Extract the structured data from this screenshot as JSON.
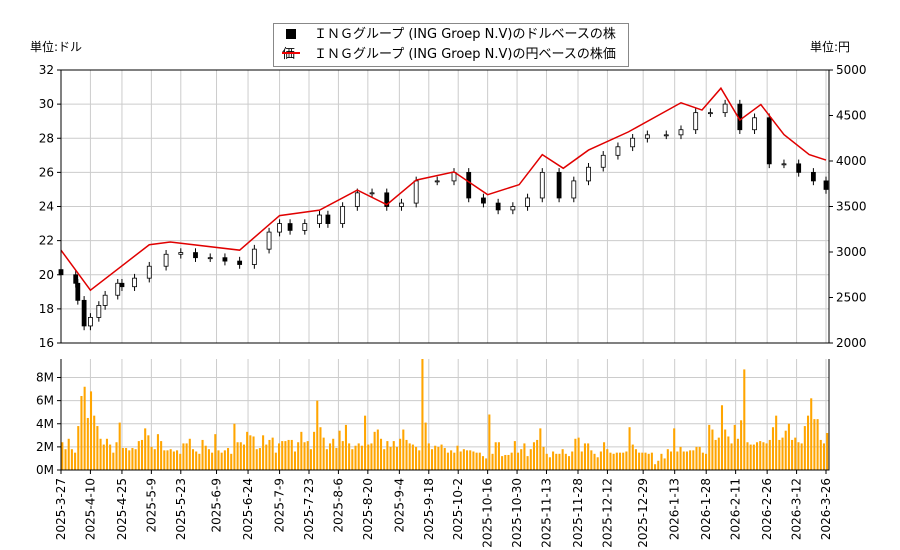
{
  "legend": {
    "usd": "ＩＮＧグループ (ING Groep N.V)のドルベースの株価",
    "jpy": "ＩＮＧグループ (ING Groep N.V)の円ベースの株価"
  },
  "units": {
    "left": "単位:ドル",
    "right": "単位:円"
  },
  "colors": {
    "usd": "#000000",
    "jpy": "#e00000",
    "volume": "#ffa500",
    "grid": "#cccccc"
  },
  "chart_data": [
    {
      "type": "candlestick+line",
      "ylim_left": [
        16,
        32
      ],
      "ylim_right": [
        2000,
        5000
      ],
      "yticks_left": [
        "16",
        "18",
        "20",
        "22",
        "24",
        "26",
        "28",
        "30",
        "32"
      ],
      "yticks_right": [
        "2000",
        "2500",
        "3000",
        "3500",
        "4000",
        "4500",
        "5000"
      ],
      "grid": true,
      "legend_position": "top-center",
      "usd_close": [
        [
          "2025-03-27",
          20.0
        ],
        [
          "2025-04-03",
          19.5
        ],
        [
          "2025-04-04",
          18.5
        ],
        [
          "2025-04-07",
          17.0
        ],
        [
          "2025-04-10",
          17.5
        ],
        [
          "2025-04-14",
          18.2
        ],
        [
          "2025-04-17",
          18.8
        ],
        [
          "2025-04-23",
          19.5
        ],
        [
          "2025-04-25",
          19.3
        ],
        [
          "2025-05-01",
          19.8
        ],
        [
          "2025-05-08",
          20.5
        ],
        [
          "2025-05-16",
          21.2
        ],
        [
          "2025-05-23",
          21.3
        ],
        [
          "2025-05-30",
          21.0
        ],
        [
          "2025-06-06",
          21.0
        ],
        [
          "2025-06-13",
          20.8
        ],
        [
          "2025-06-20",
          20.6
        ],
        [
          "2025-06-27",
          21.5
        ],
        [
          "2025-07-04",
          22.5
        ],
        [
          "2025-07-09",
          23.0
        ],
        [
          "2025-07-14",
          22.6
        ],
        [
          "2025-07-21",
          23.0
        ],
        [
          "2025-07-28",
          23.5
        ],
        [
          "2025-08-01",
          23.0
        ],
        [
          "2025-08-08",
          24.0
        ],
        [
          "2025-08-15",
          24.8
        ],
        [
          "2025-08-22",
          24.8
        ],
        [
          "2025-08-29",
          24.0
        ],
        [
          "2025-09-05",
          24.2
        ],
        [
          "2025-09-12",
          25.5
        ],
        [
          "2025-09-22",
          25.5
        ],
        [
          "2025-09-30",
          26.0
        ],
        [
          "2025-10-07",
          24.5
        ],
        [
          "2025-10-14",
          24.2
        ],
        [
          "2025-10-21",
          23.8
        ],
        [
          "2025-10-28",
          24.0
        ],
        [
          "2025-11-04",
          24.5
        ],
        [
          "2025-11-11",
          26.0
        ],
        [
          "2025-11-19",
          24.5
        ],
        [
          "2025-11-26",
          25.5
        ],
        [
          "2025-12-03",
          26.3
        ],
        [
          "2025-12-10",
          27.0
        ],
        [
          "2025-12-17",
          27.5
        ],
        [
          "2025-12-24",
          28.0
        ],
        [
          "2025-12-31",
          28.2
        ],
        [
          "2026-01-09",
          28.2
        ],
        [
          "2026-01-16",
          28.5
        ],
        [
          "2026-01-23",
          29.5
        ],
        [
          "2026-01-30",
          29.5
        ],
        [
          "2026-02-06",
          30.0
        ],
        [
          "2026-02-13",
          28.5
        ],
        [
          "2026-02-20",
          29.2
        ],
        [
          "2026-02-27",
          26.5
        ],
        [
          "2026-03-06",
          26.5
        ],
        [
          "2026-03-13",
          26.0
        ],
        [
          "2026-03-20",
          25.5
        ],
        [
          "2026-03-26",
          25.0
        ]
      ],
      "jpy_close": [
        [
          "2025-03-27",
          3020
        ],
        [
          "2025-04-10",
          2580
        ],
        [
          "2025-05-08",
          3080
        ],
        [
          "2025-05-18",
          3110
        ],
        [
          "2025-06-20",
          3020
        ],
        [
          "2025-07-09",
          3400
        ],
        [
          "2025-07-28",
          3460
        ],
        [
          "2025-08-15",
          3680
        ],
        [
          "2025-08-29",
          3520
        ],
        [
          "2025-09-12",
          3790
        ],
        [
          "2025-09-30",
          3880
        ],
        [
          "2025-10-16",
          3630
        ],
        [
          "2025-10-31",
          3740
        ],
        [
          "2025-11-11",
          4070
        ],
        [
          "2025-11-21",
          3920
        ],
        [
          "2025-12-03",
          4120
        ],
        [
          "2025-12-22",
          4320
        ],
        [
          "2026-01-16",
          4640
        ],
        [
          "2026-01-26",
          4560
        ],
        [
          "2026-02-04",
          4800
        ],
        [
          "2026-02-13",
          4450
        ],
        [
          "2026-02-23",
          4620
        ],
        [
          "2026-03-06",
          4290
        ],
        [
          "2026-03-18",
          4070
        ],
        [
          "2026-03-26",
          4010
        ]
      ]
    },
    {
      "type": "bar",
      "ylabel": "",
      "yticks": [
        "0M",
        "2M",
        "4M",
        "6M",
        "8M"
      ],
      "ylim": [
        0,
        9.6
      ],
      "unit": "M",
      "volume": [
        2.4,
        1.8,
        2.7,
        1.8,
        1.5,
        3.8,
        6.4,
        7.2,
        4.5,
        6.8,
        4.7,
        3.8,
        2.7,
        2.2,
        2.7,
        2.2,
        1.5,
        2.4,
        4.1,
        1.9,
        1.9,
        1.7,
        1.9,
        1.8,
        2.5,
        2.6,
        3.6,
        3.0,
        2.0,
        1.8,
        3.1,
        2.5,
        1.7,
        1.7,
        1.8,
        1.6,
        1.7,
        1.4,
        2.3,
        2.3,
        2.7,
        1.8,
        1.6,
        1.4,
        2.6,
        2.1,
        1.8,
        1.5,
        3.1,
        1.7,
        1.5,
        1.7,
        1.9,
        1.4,
        4.0,
        2.4,
        2.4,
        2.2,
        3.3,
        3.0,
        2.9,
        1.8,
        1.9,
        3.0,
        2.2,
        2.6,
        2.8,
        1.5,
        2.3,
        2.5,
        2.5,
        2.6,
        2.6,
        1.6,
        2.4,
        3.3,
        2.4,
        2.5,
        1.8,
        3.3,
        6.0,
        3.7,
        2.8,
        1.8,
        2.3,
        2.7,
        1.9,
        3.4,
        2.5,
        3.9,
        2.3,
        1.8,
        2.1,
        2.3,
        2.1,
        4.7,
        2.2,
        2.3,
        3.3,
        3.5,
        2.7,
        1.8,
        2.5,
        2.0,
        2.5,
        2.0,
        2.7,
        3.5,
        2.6,
        2.3,
        2.2,
        2.0,
        1.7,
        9.6,
        4.1,
        2.3,
        1.8,
        2.1,
        2.0,
        2.2,
        1.9,
        1.5,
        1.7,
        1.5,
        2.1,
        1.6,
        1.8,
        1.7,
        1.7,
        1.6,
        1.5,
        1.5,
        1.2,
        1.0,
        4.8,
        1.4,
        2.4,
        2.4,
        1.2,
        1.3,
        1.3,
        1.5,
        2.5,
        1.5,
        1.8,
        2.3,
        1.2,
        1.8,
        2.4,
        2.6,
        3.6,
        2.0,
        1.4,
        1.1,
        1.6,
        1.4,
        1.4,
        1.8,
        1.4,
        1.2,
        1.6,
        2.7,
        2.8,
        1.6,
        2.3,
        2.3,
        1.7,
        1.4,
        1.1,
        1.6,
        2.4,
        1.8,
        1.5,
        1.4,
        1.5,
        1.5,
        1.5,
        1.6,
        3.7,
        2.2,
        1.8,
        1.5,
        1.5,
        1.5,
        1.4,
        1.5,
        0.5,
        0.8,
        1.4,
        1.0,
        1.8,
        1.6,
        3.6,
        1.6,
        2.0,
        1.6,
        1.6,
        1.7,
        1.7,
        2.0,
        2.0,
        1.5,
        1.4,
        3.9,
        3.5,
        2.6,
        2.8,
        5.6,
        3.5,
        2.9,
        2.3,
        3.9,
        2.7,
        4.3,
        8.7,
        2.4,
        2.2,
        2.2,
        2.4,
        2.5,
        2.4,
        2.3,
        2.6,
        3.7,
        4.7,
        2.6,
        2.8,
        3.4,
        4.0,
        2.6,
        2.8,
        2.4,
        2.3,
        3.8,
        4.7,
        6.2,
        4.4,
        4.4,
        2.6,
        2.3,
        3.2
      ]
    }
  ],
  "xaxis": {
    "range": [
      "2025-03-27",
      "2026-03-26"
    ],
    "ticks": [
      "2025-3-27",
      "2025-4-10",
      "2025-4-25",
      "2025-5-9",
      "2025-5-23",
      "2025-6-9",
      "2025-6-24",
      "2025-7-9",
      "2025-7-23",
      "2025-8-6",
      "2025-8-20",
      "2025-9-4",
      "2025-9-18",
      "2025-10-2",
      "2025-10-16",
      "2025-10-30",
      "2025-11-13",
      "2025-11-28",
      "2025-12-12",
      "2025-12-29",
      "2026-1-13",
      "2026-1-28",
      "2026-2-11",
      "2026-2-26",
      "2026-3-12",
      "2026-3-26"
    ]
  }
}
